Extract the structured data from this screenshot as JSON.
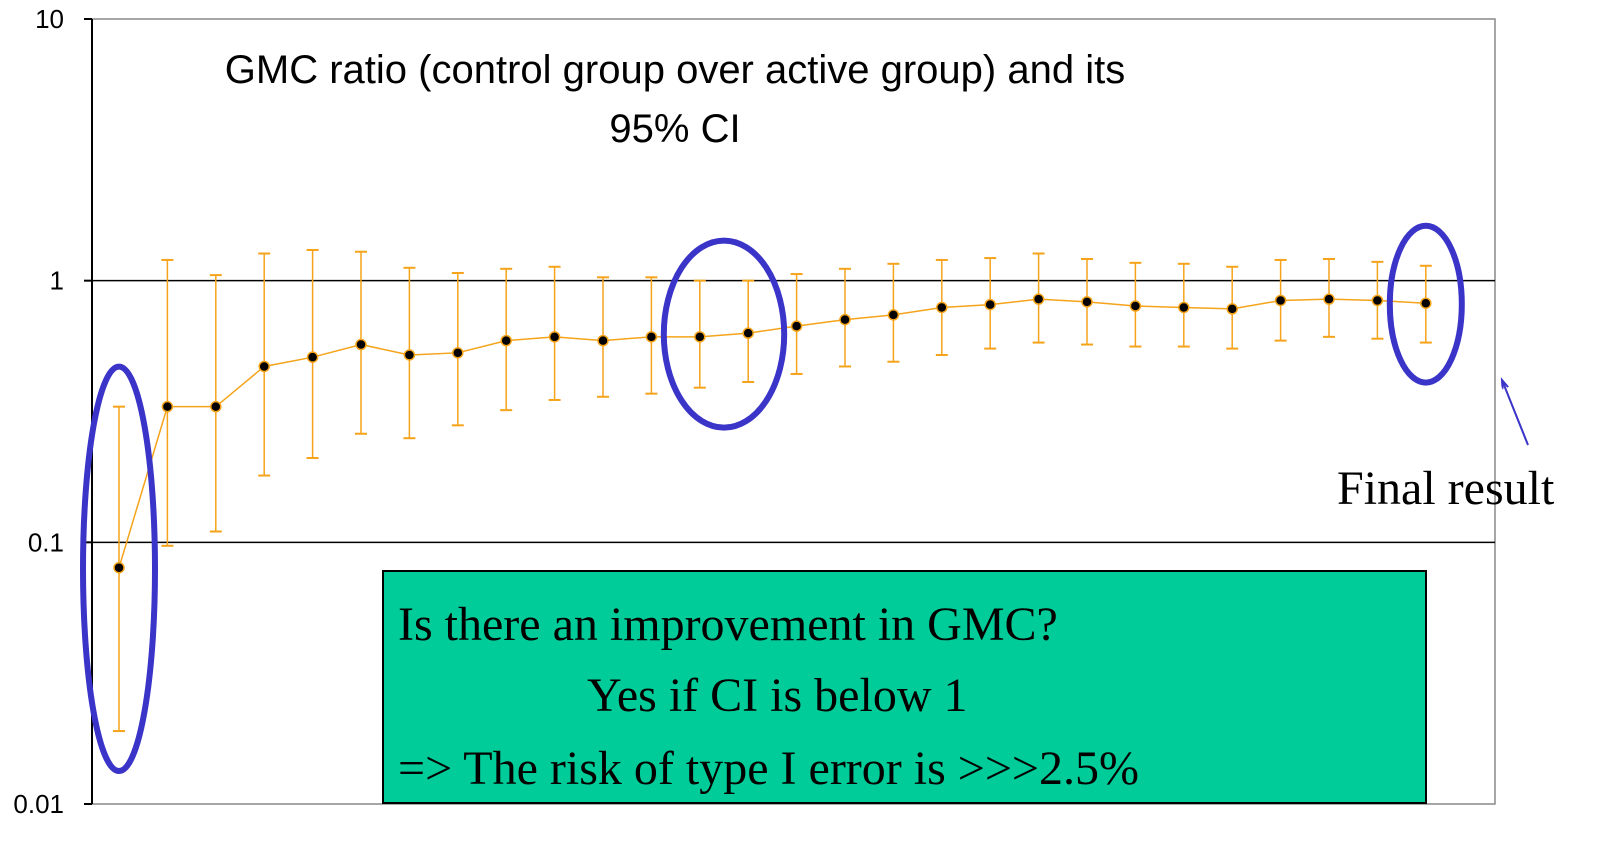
{
  "chart_data": {
    "type": "scatter",
    "title_lines": [
      "GMC ratio (control group over active group) and its",
      "95% CI"
    ],
    "y_scale": "log",
    "ylim": [
      0.01,
      10
    ],
    "y_ticks": [
      "10",
      "1",
      "0.1",
      "0.01"
    ],
    "y_tick_values": [
      10,
      1,
      0.1,
      0.01
    ],
    "grid_lines_y": [
      1,
      0.1
    ],
    "colors": {
      "series": "#f5a31a",
      "points": "#000000",
      "highlight": "#3a34c8",
      "box": "#00cc99"
    },
    "series": [
      {
        "estimate": [
          0.08,
          0.33,
          0.33,
          0.47,
          0.51,
          0.57,
          0.52,
          0.53,
          0.59,
          0.61,
          0.59,
          0.61,
          0.61,
          0.63,
          0.67,
          0.71,
          0.74,
          0.79,
          0.81,
          0.85,
          0.83,
          0.8,
          0.79,
          0.78,
          0.84,
          0.85,
          0.84,
          0.82
        ],
        "lower": [
          0.019,
          0.097,
          0.11,
          0.18,
          0.21,
          0.26,
          0.25,
          0.28,
          0.32,
          0.35,
          0.36,
          0.37,
          0.39,
          0.41,
          0.44,
          0.47,
          0.49,
          0.52,
          0.55,
          0.58,
          0.57,
          0.56,
          0.56,
          0.55,
          0.59,
          0.61,
          0.6,
          0.58
        ],
        "upper": [
          0.33,
          1.2,
          1.05,
          1.27,
          1.31,
          1.29,
          1.12,
          1.07,
          1.11,
          1.13,
          1.03,
          1.03,
          1.0,
          1.0,
          1.06,
          1.11,
          1.16,
          1.2,
          1.22,
          1.27,
          1.21,
          1.17,
          1.16,
          1.13,
          1.2,
          1.21,
          1.18,
          1.14
        ]
      }
    ],
    "highlight_indices": [
      [
        0
      ],
      [
        12,
        13
      ],
      [
        27
      ]
    ],
    "annotations": {
      "final_result": "Final result",
      "box_lines": [
        "Is there an improvement in GMC?",
        "Yes if CI is below 1",
        "=> The risk of type I error is >>>2.5%"
      ]
    }
  }
}
